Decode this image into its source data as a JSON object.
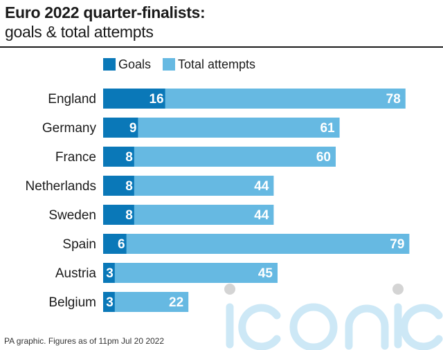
{
  "title": "Euro 2022 quarter-finalists:",
  "subtitle": "goals & total attempts",
  "footer": "PA graphic. Figures as of 11pm Jul 20 2022",
  "watermark": "iconic",
  "colors": {
    "goals": "#0a78b8",
    "attempts": "#66b9e2",
    "bar_text": "#ffffff",
    "watermark": "#cde8f6",
    "watermark_dot": "#d4d4d4"
  },
  "chart_data": {
    "type": "bar",
    "orientation": "horizontal",
    "stacked": "overlay",
    "categories": [
      "England",
      "Germany",
      "France",
      "Netherlands",
      "Sweden",
      "Spain",
      "Austria",
      "Belgium"
    ],
    "series": [
      {
        "name": "Goals",
        "values": [
          16,
          9,
          8,
          8,
          8,
          6,
          3,
          3
        ]
      },
      {
        "name": "Total attempts",
        "values": [
          78,
          61,
          60,
          44,
          44,
          79,
          45,
          22
        ]
      }
    ],
    "xlim": [
      0,
      79
    ],
    "grid": false,
    "legend": "top"
  }
}
